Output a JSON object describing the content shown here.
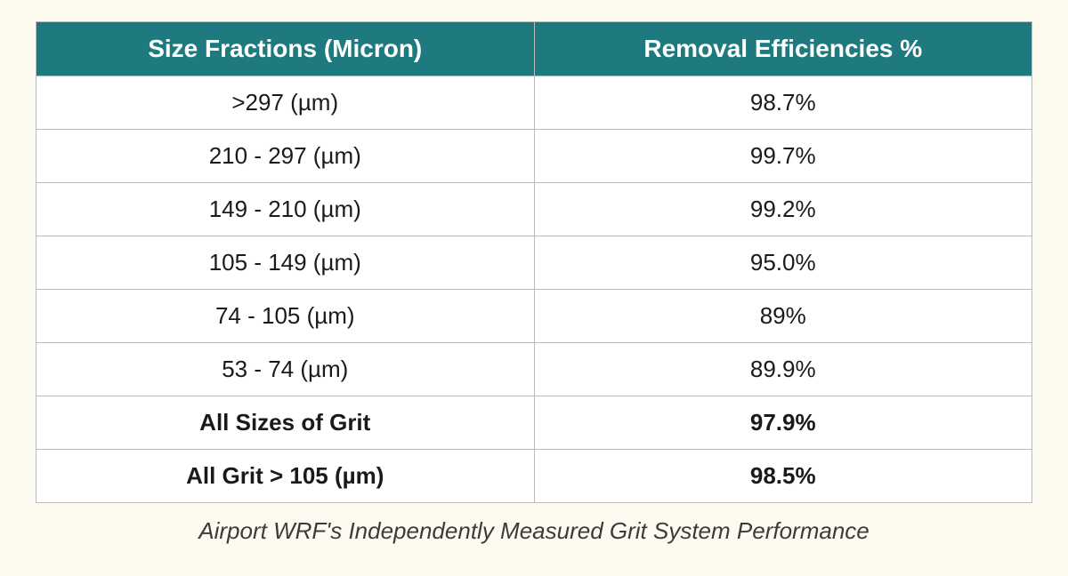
{
  "table": {
    "header_bg": "#1f7a80",
    "header_color": "#ffffff",
    "border_color": "#b9bbbd",
    "cell_bg": "#ffffff",
    "page_bg": "#fdfbef",
    "header_fontsize": 28,
    "cell_fontsize": 26,
    "col_widths_pct": [
      50,
      50
    ],
    "columns": [
      "Size Fractions (Micron)",
      "Removal Efficiencies %"
    ],
    "rows": [
      {
        "cells": [
          ">297 (µm)",
          "98.7%"
        ],
        "bold": false
      },
      {
        "cells": [
          "210 - 297 (µm)",
          "99.7%"
        ],
        "bold": false
      },
      {
        "cells": [
          "149 - 210 (µm)",
          "99.2%"
        ],
        "bold": false
      },
      {
        "cells": [
          "105 - 149 (µm)",
          "95.0%"
        ],
        "bold": false
      },
      {
        "cells": [
          "74 - 105 (µm)",
          "89%"
        ],
        "bold": false
      },
      {
        "cells": [
          "53 - 74 (µm)",
          "89.9%"
        ],
        "bold": false
      },
      {
        "cells": [
          "All Sizes of Grit",
          "97.9%"
        ],
        "bold": true
      },
      {
        "cells": [
          "All Grit > 105 (µm)",
          "98.5%"
        ],
        "bold": true
      }
    ]
  },
  "caption": "Airport WRF's Independently Measured Grit System Performance"
}
